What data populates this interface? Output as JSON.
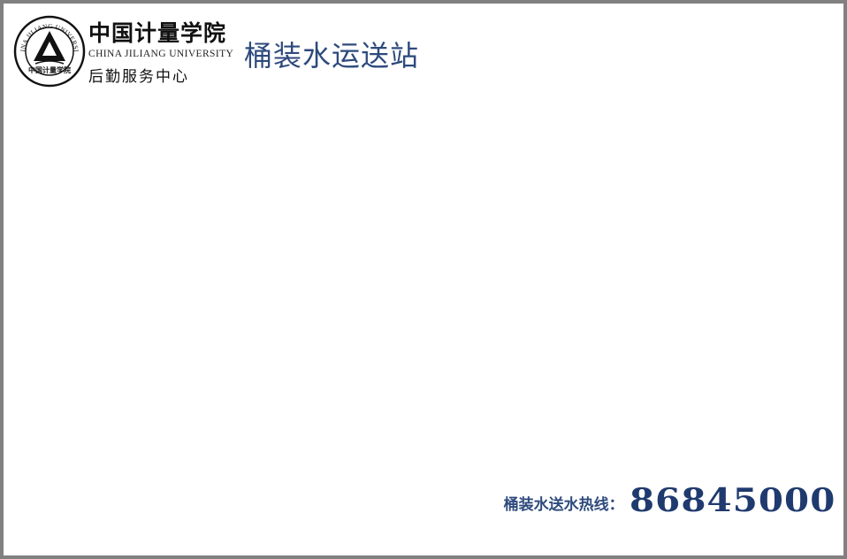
{
  "header": {
    "university_cn": "中国计量学院",
    "university_en": "CHINA JILIANG UNIVERSITY",
    "department": "后勤服务中心",
    "seal_ring_text": "CHINA JILIANG UNIVERSITY",
    "seal_bottom_text": "中国计量学院",
    "page_title": "桶装水运送站"
  },
  "footer": {
    "hotline_label": "桶装水送水热线：",
    "hotline_number": "86845000"
  },
  "colors": {
    "title_blue": "#2e4a7d",
    "number_blue": "#1f3a6e",
    "frame_gray": "#808080"
  }
}
